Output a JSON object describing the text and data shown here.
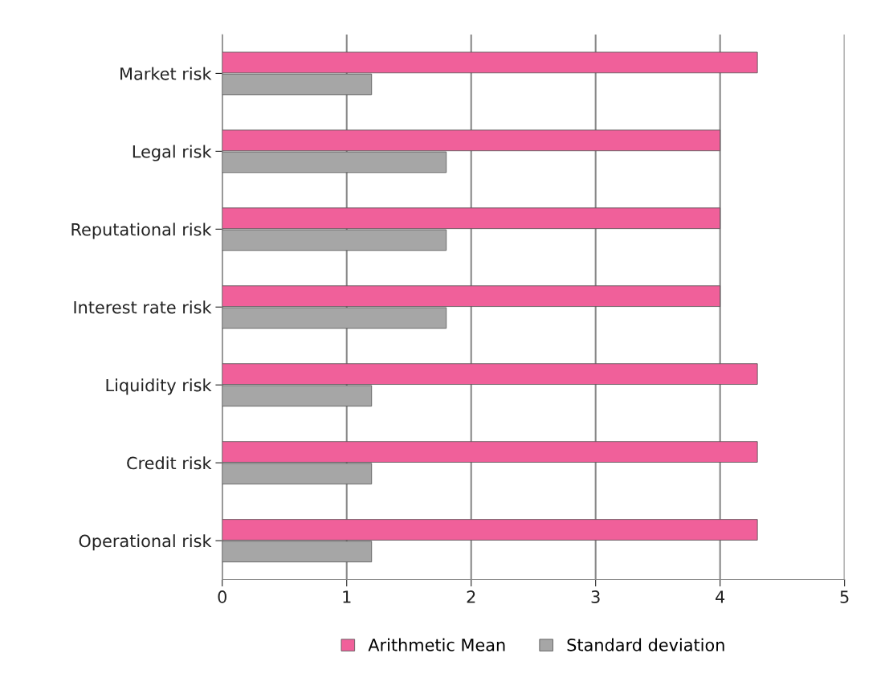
{
  "chart_data": {
    "type": "bar",
    "orientation": "horizontal",
    "categories": [
      "Market risk",
      "Legal risk",
      "Reputational risk",
      "Interest rate risk",
      "Liquidity risk",
      "Credit risk",
      "Operational risk"
    ],
    "series": [
      {
        "name": "Arithmetic Mean",
        "color": "#f0609a",
        "values": [
          4.3,
          4.0,
          4.0,
          4.0,
          4.3,
          4.3,
          4.3
        ]
      },
      {
        "name": "Standard deviation",
        "color": "#a6a6a6",
        "values": [
          1.2,
          1.8,
          1.8,
          1.8,
          1.2,
          1.2,
          1.2
        ]
      }
    ],
    "xlim": [
      0,
      5
    ],
    "xticks": [
      0,
      1,
      2,
      3,
      4,
      5
    ],
    "grid": "x",
    "legend": "bottom"
  }
}
